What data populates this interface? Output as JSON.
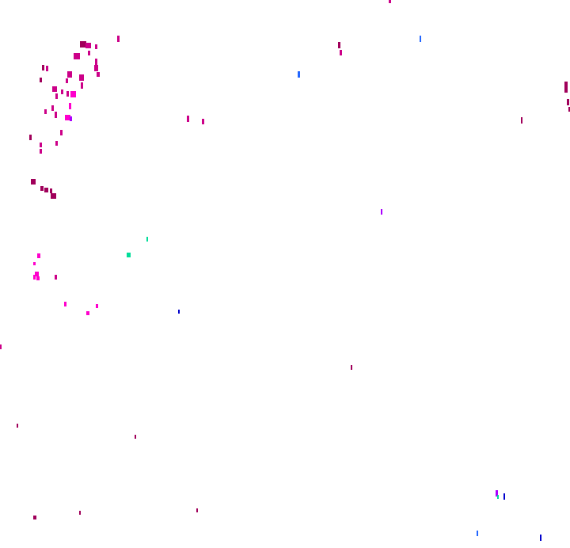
{
  "palette": {
    "background": "#ffffff",
    "dark_magenta": "#a0005a",
    "magenta": "#cc0088",
    "pink": "#ff00cc",
    "violet": "#aa00ff",
    "blue": "#2266ff",
    "navy": "#0000cc",
    "teal": "#00dd99"
  }
}
